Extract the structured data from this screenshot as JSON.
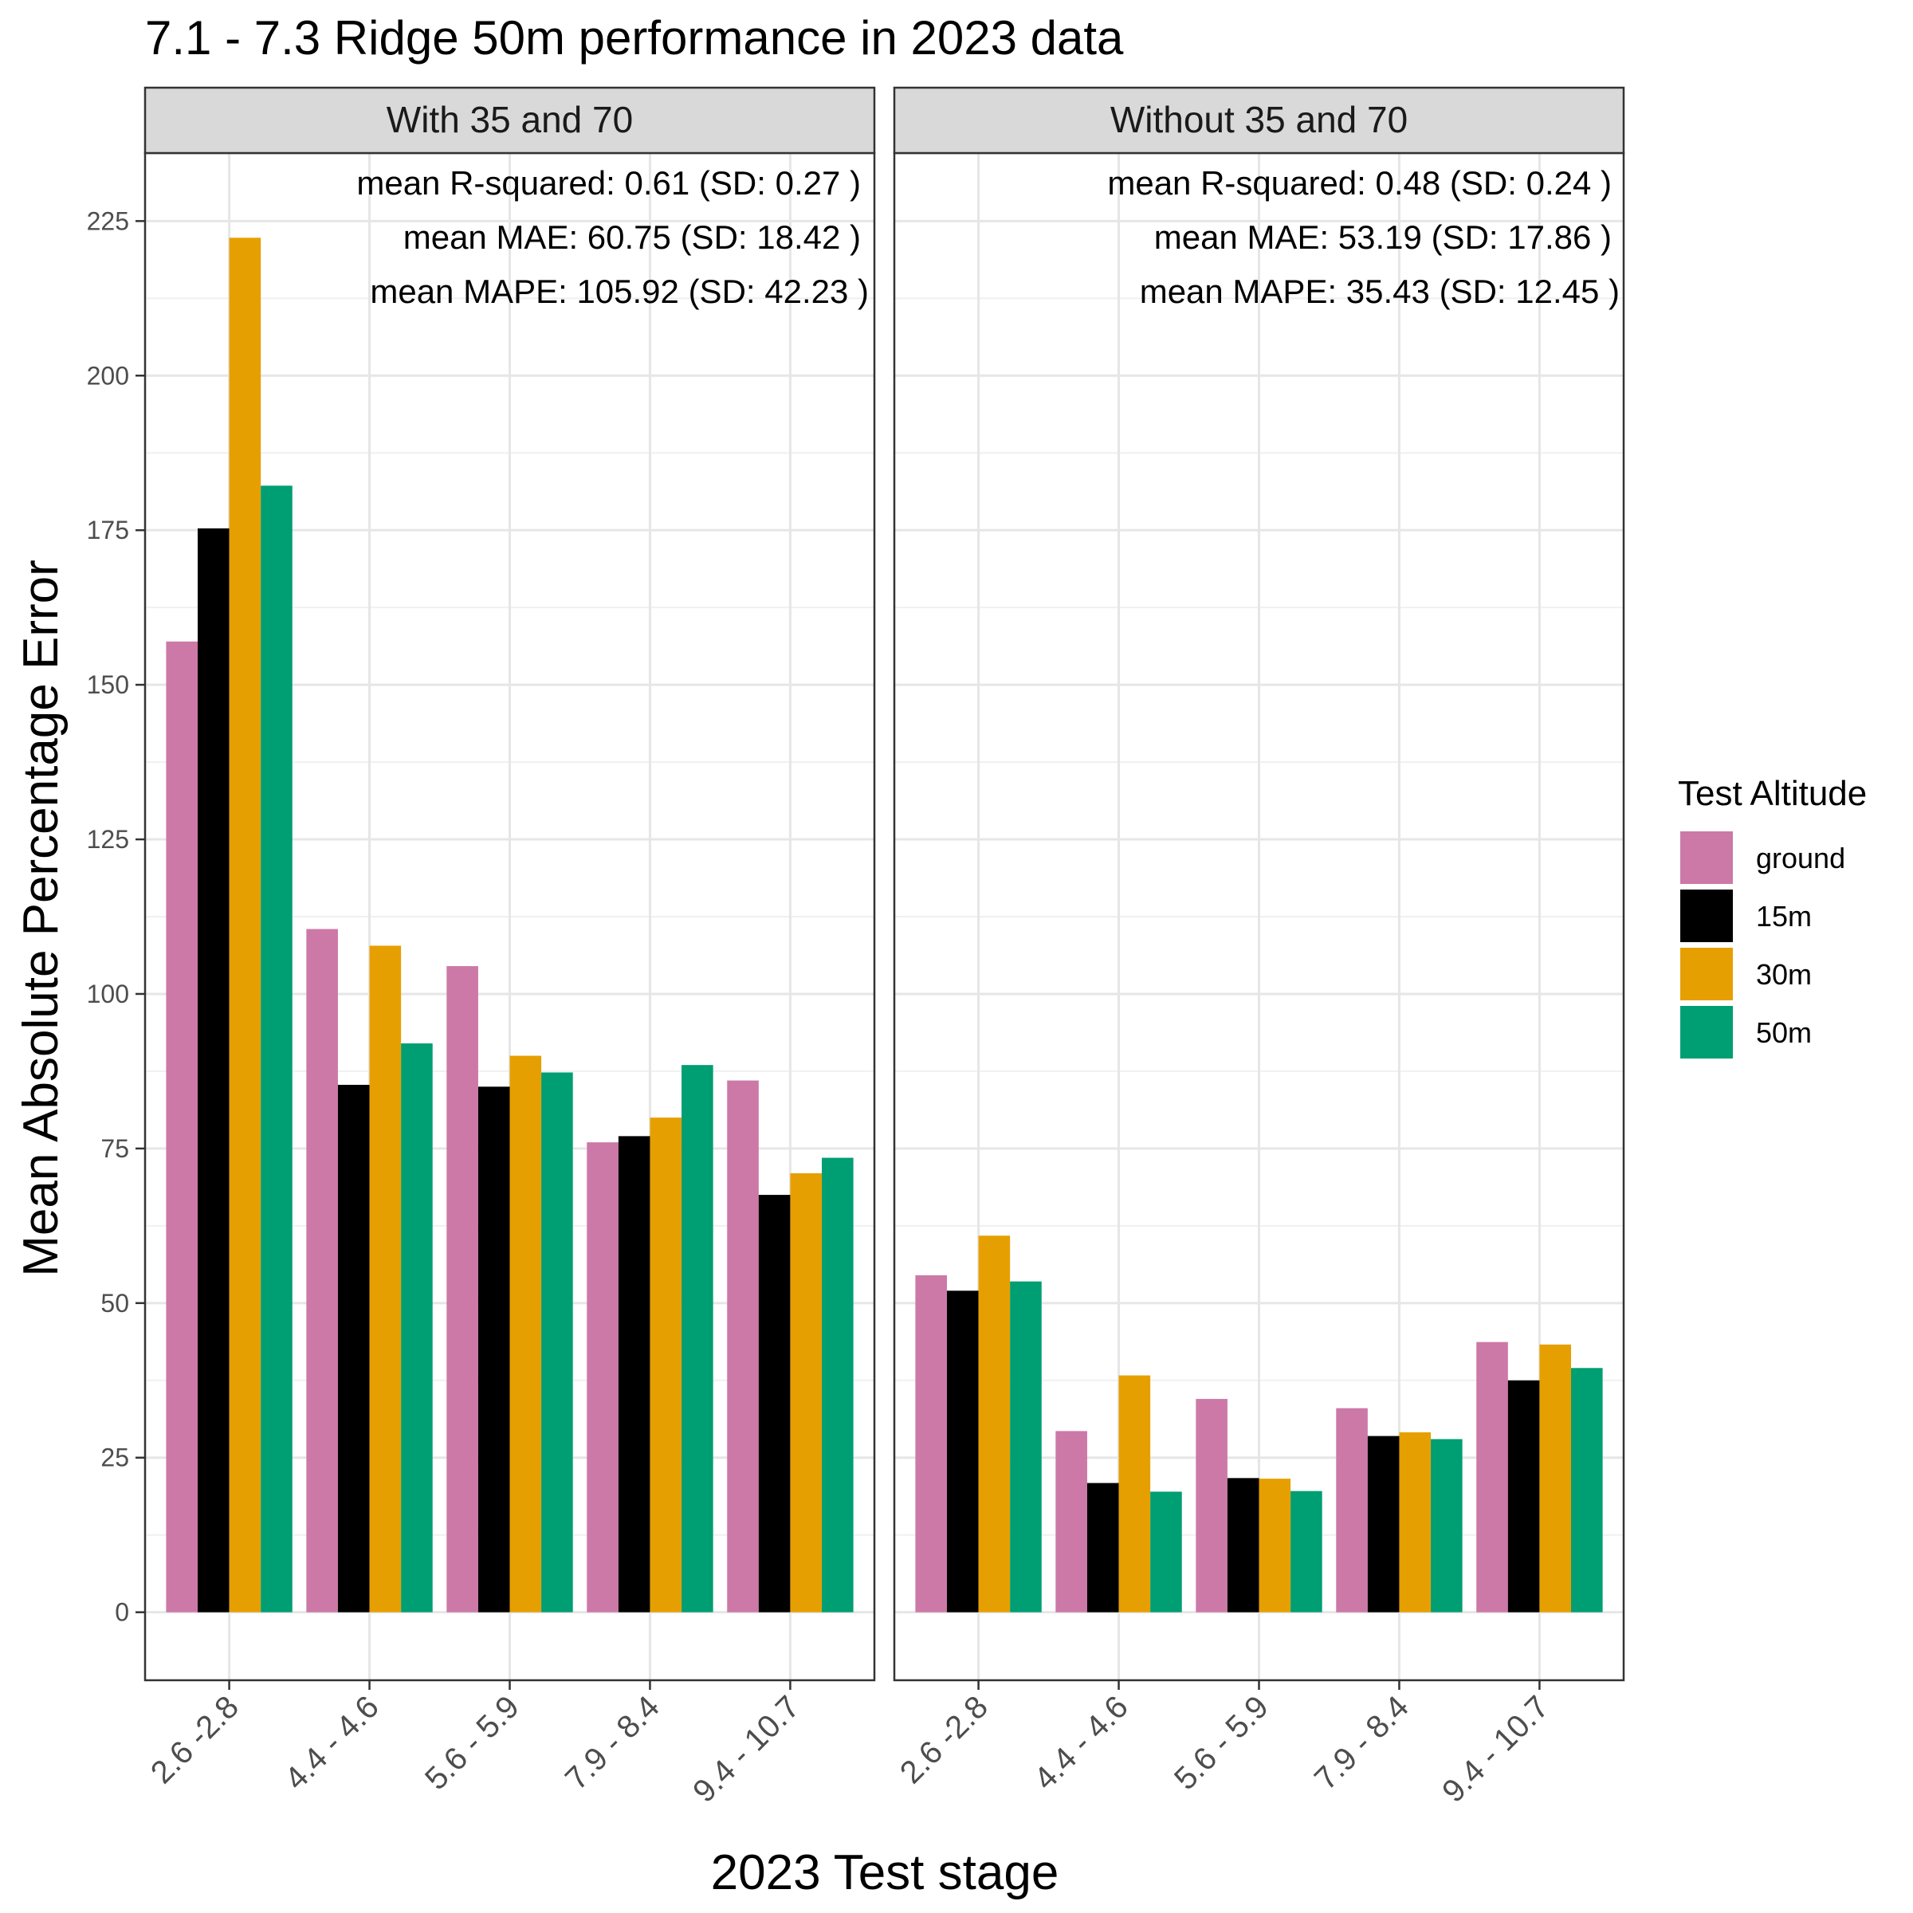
{
  "chart_data": {
    "type": "bar",
    "title": "7.1 - 7.3 Ridge 50m  performance in 2023 data",
    "xlabel": "2023 Test stage",
    "ylabel": "Mean Absolute Percentage Error",
    "ylim": [
      -11,
      236
    ],
    "yticks": [
      0,
      25,
      50,
      75,
      100,
      125,
      150,
      175,
      200,
      225
    ],
    "grid": true,
    "legend": {
      "title": "Test Altitude",
      "position": "right",
      "entries": [
        "ground",
        "15m",
        "30m",
        "50m"
      ]
    },
    "colors": {
      "ground": "#CC79A7",
      "15m": "#000000",
      "30m": "#E69F00",
      "50m": "#009E73"
    },
    "categories": [
      "2.6 -2.8",
      "4.4 - 4.6",
      "5.6 - 5.9",
      "7.9 - 8.4",
      "9.4 - 10.7"
    ],
    "panels": [
      {
        "title": "With 35 and 70",
        "annotations": [
          "mean R-squared:  0.61  (SD:  0.27 )",
          "mean MAE:  60.75  (SD:  18.42 )",
          "mean MAPE:  105.92  (SD:  42.23 )"
        ],
        "series": [
          {
            "name": "ground",
            "values": [
              157,
              110.5,
              104.5,
              76,
              86
            ]
          },
          {
            "name": "15m",
            "values": [
              175.3,
              85.3,
              85,
              77,
              67.5
            ]
          },
          {
            "name": "30m",
            "values": [
              222.3,
              107.8,
              90,
              80,
              71
            ]
          },
          {
            "name": "50m",
            "values": [
              182.2,
              92,
              87.3,
              88.5,
              73.5
            ]
          }
        ]
      },
      {
        "title": "Without 35 and 70",
        "annotations": [
          "mean R-squared:  0.48  (SD:  0.24 )",
          "mean MAE:  53.19  (SD:  17.86 )",
          "mean MAPE:  35.43  (SD:  12.45 )"
        ],
        "series": [
          {
            "name": "ground",
            "values": [
              54.5,
              29.3,
              34.5,
              33,
              43.7
            ]
          },
          {
            "name": "15m",
            "values": [
              52,
              20.9,
              21.7,
              28.5,
              37.5
            ]
          },
          {
            "name": "30m",
            "values": [
              60.9,
              38.3,
              21.6,
              29.1,
              43.3
            ]
          },
          {
            "name": "50m",
            "values": [
              53.5,
              19.5,
              19.6,
              28,
              39.5
            ]
          }
        ]
      }
    ]
  }
}
